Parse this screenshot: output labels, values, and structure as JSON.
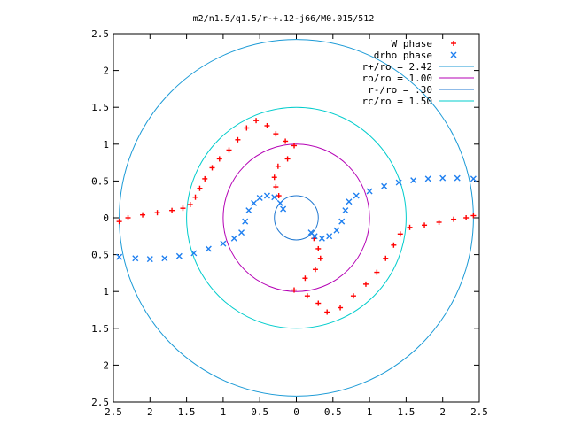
{
  "chart_data": {
    "type": "scatter",
    "title": "m2/n1.5/q1.5/r-+.12-j66/M0.015/512",
    "xlim": [
      -2.5,
      2.5
    ],
    "ylim": [
      -2.5,
      2.5
    ],
    "x_ticks": [
      -2.5,
      -2,
      -1.5,
      -1,
      -0.5,
      0,
      0.5,
      1,
      1.5,
      2,
      2.5
    ],
    "y_ticks": [
      2.5,
      2,
      1.5,
      1,
      0.5,
      0,
      -0.5,
      -1,
      -1.5,
      -2,
      -2.5
    ],
    "x_tick_labels": [
      "2.5",
      "2",
      "1.5",
      "1",
      "0.5",
      "0",
      "0.5",
      "1",
      "1.5",
      "2",
      "2.5"
    ],
    "y_tick_labels": [
      "2.5",
      "2",
      "1.5",
      "1",
      "0.5",
      "0",
      "0.5",
      "1",
      "1.5",
      "2",
      "2.5"
    ],
    "grid": false,
    "legend_position": "top-right",
    "series": [
      {
        "name": "W phase",
        "marker": "plus",
        "color": "#ff0000",
        "points": [
          [
            -2.42,
            -0.05
          ],
          [
            -2.3,
            0.0
          ],
          [
            -2.1,
            0.04
          ],
          [
            -1.9,
            0.07
          ],
          [
            -1.7,
            0.1
          ],
          [
            -1.55,
            0.13
          ],
          [
            -1.45,
            0.18
          ],
          [
            -1.38,
            0.28
          ],
          [
            -1.32,
            0.4
          ],
          [
            -1.25,
            0.53
          ],
          [
            -1.15,
            0.68
          ],
          [
            -1.05,
            0.8
          ],
          [
            -0.92,
            0.92
          ],
          [
            -0.8,
            1.06
          ],
          [
            -0.68,
            1.22
          ],
          [
            -0.55,
            1.32
          ],
          [
            -0.4,
            1.25
          ],
          [
            -0.28,
            1.14
          ],
          [
            -0.15,
            1.04
          ],
          [
            -0.03,
            0.98
          ],
          [
            -0.12,
            0.8
          ],
          [
            -0.25,
            0.7
          ],
          [
            -0.3,
            0.55
          ],
          [
            -0.28,
            0.42
          ],
          [
            -0.24,
            0.3
          ],
          [
            0.24,
            -0.28
          ],
          [
            0.3,
            -0.42
          ],
          [
            0.33,
            -0.55
          ],
          [
            0.26,
            -0.7
          ],
          [
            0.12,
            -0.82
          ],
          [
            -0.03,
            -0.98
          ],
          [
            0.15,
            -1.06
          ],
          [
            0.3,
            -1.16
          ],
          [
            0.42,
            -1.28
          ],
          [
            0.6,
            -1.22
          ],
          [
            0.78,
            -1.06
          ],
          [
            0.95,
            -0.9
          ],
          [
            1.1,
            -0.74
          ],
          [
            1.22,
            -0.55
          ],
          [
            1.33,
            -0.37
          ],
          [
            1.42,
            -0.22
          ],
          [
            1.55,
            -0.13
          ],
          [
            1.75,
            -0.1
          ],
          [
            1.95,
            -0.06
          ],
          [
            2.15,
            -0.02
          ],
          [
            2.32,
            0.0
          ],
          [
            2.42,
            0.03
          ]
        ]
      },
      {
        "name": "drho phase",
        "marker": "cross",
        "color": "#1e7ff0",
        "points": [
          [
            -2.42,
            -0.53
          ],
          [
            -2.2,
            -0.55
          ],
          [
            -2.0,
            -0.56
          ],
          [
            -1.8,
            -0.55
          ],
          [
            -1.6,
            -0.52
          ],
          [
            -1.4,
            -0.48
          ],
          [
            -1.2,
            -0.42
          ],
          [
            -1.0,
            -0.35
          ],
          [
            -0.85,
            -0.28
          ],
          [
            -0.75,
            -0.2
          ],
          [
            -0.7,
            -0.05
          ],
          [
            -0.65,
            0.1
          ],
          [
            -0.58,
            0.2
          ],
          [
            -0.5,
            0.27
          ],
          [
            -0.4,
            0.3
          ],
          [
            -0.3,
            0.28
          ],
          [
            -0.22,
            0.2
          ],
          [
            -0.18,
            0.12
          ],
          [
            0.2,
            -0.2
          ],
          [
            0.25,
            -0.25
          ],
          [
            0.35,
            -0.28
          ],
          [
            0.45,
            -0.25
          ],
          [
            0.55,
            -0.17
          ],
          [
            0.62,
            -0.05
          ],
          [
            0.67,
            0.1
          ],
          [
            0.72,
            0.22
          ],
          [
            0.82,
            0.3
          ],
          [
            1.0,
            0.36
          ],
          [
            1.2,
            0.43
          ],
          [
            1.4,
            0.48
          ],
          [
            1.6,
            0.51
          ],
          [
            1.8,
            0.53
          ],
          [
            2.0,
            0.54
          ],
          [
            2.2,
            0.54
          ],
          [
            2.42,
            0.53
          ]
        ]
      },
      {
        "name": "r+/ro = 2.42",
        "type": "circle",
        "radius": 2.42,
        "color": "#1b9ad6"
      },
      {
        "name": "ro/ro = 1.00",
        "type": "circle",
        "radius": 1.0,
        "color": "#b400b4"
      },
      {
        "name": "r-/ro = .30",
        "type": "circle",
        "radius": 0.3,
        "color": "#1f77d0"
      },
      {
        "name": "rc/ro = 1.50",
        "type": "circle",
        "radius": 1.5,
        "color": "#00cccc"
      }
    ]
  }
}
